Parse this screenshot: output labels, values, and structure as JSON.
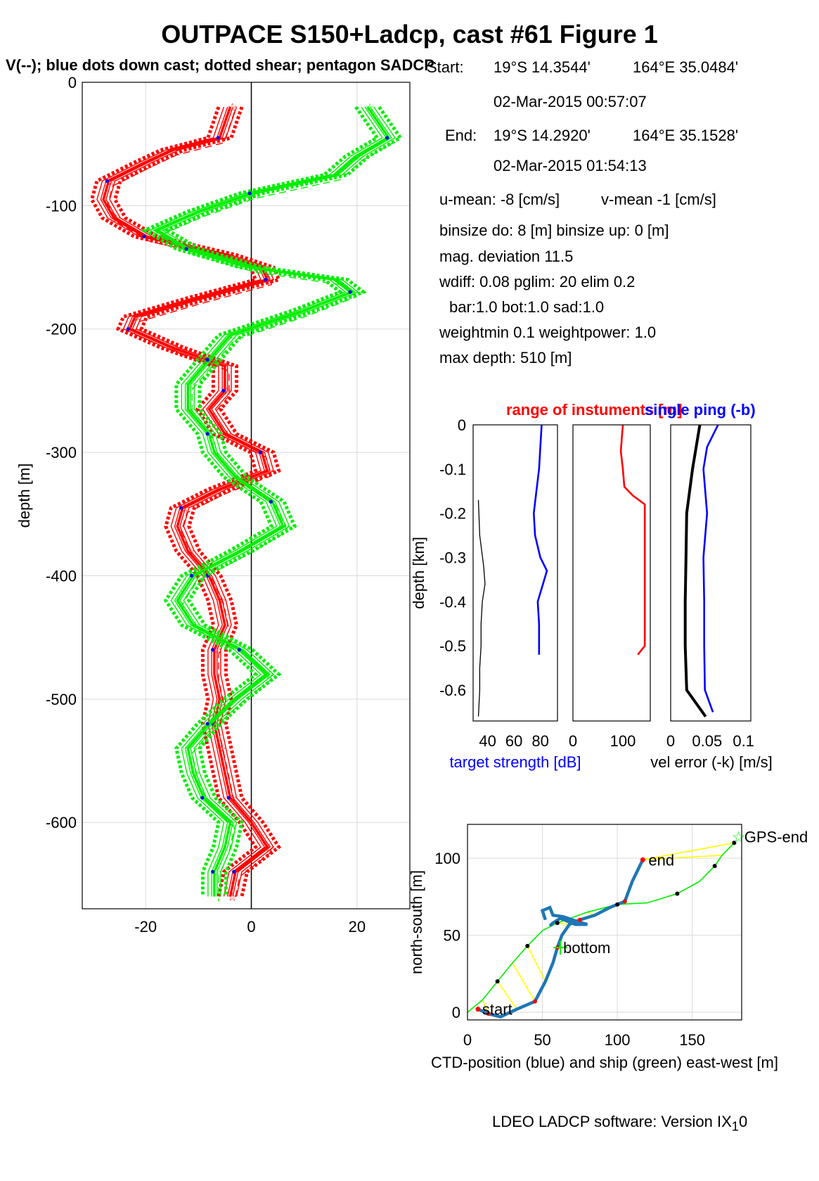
{
  "title": "OUTPACE S150+Ladcp, cast #61  Figure 1",
  "subtitle": "V(--); blue dots down cast; dotted shear; pentagon SADCP",
  "info": {
    "start_label": "Start:",
    "start_lat": "19°S 14.3544'",
    "start_lon": "164°E 35.0484'",
    "start_time": "02-Mar-2015 00:57:07",
    "end_label": "End:",
    "end_lat": "19°S 14.2920'",
    "end_lon": "164°E 35.1528'",
    "end_time": "02-Mar-2015 01:54:13",
    "u_mean": "u-mean:  -8 [cm/s]",
    "v_mean": "v-mean  -1 [cm/s]",
    "binsize": "binsize do: 8 [m]  binsize up:  0 [m]",
    "mag_dev": "mag. deviation 11.5",
    "wdiff": "wdiff: 0.08  pglim: 20  elim 0.2",
    "bar": "bar:1.0 bot:1.0 sad:1.0",
    "weight": "weightmin 0.1  weightpower: 1.0",
    "max_depth": "max depth: 510 [m]"
  },
  "footer": "LDEO LADCP software: Version IX",
  "footer_sub": "1",
  "footer_tail": "0",
  "colors": {
    "u": "#ff0000",
    "v": "#00ee00",
    "blue": "#0000ff",
    "track": "#1f77b4",
    "yellow": "#ffff00"
  },
  "chart_data": [
    {
      "type": "line",
      "id": "velocity-profile",
      "ylabel": "depth [m]",
      "xlim": [
        -32,
        30
      ],
      "ylim": [
        -670,
        0
      ],
      "xticks": [
        -20,
        0,
        20
      ],
      "yticks": [
        0,
        -100,
        -200,
        -300,
        -400,
        -500,
        -600
      ],
      "ytick_labels": [
        "0",
        "-100",
        "-200",
        "-300",
        "-400",
        "-500",
        "-600"
      ],
      "grid": true,
      "series": [
        {
          "color": "red",
          "depth": [
            -20,
            -45,
            -55,
            -65,
            -80,
            -95,
            -110,
            -125,
            -140,
            -150,
            -160,
            -175,
            -190,
            -200,
            -215,
            -230,
            -250,
            -265,
            -285,
            -300,
            -315,
            -330,
            -345,
            -360,
            -380,
            -400,
            -420,
            -440,
            -460,
            -480,
            -500,
            -520,
            -540,
            -560,
            -580,
            -600,
            -620,
            -640,
            -660
          ],
          "values": [
            -4,
            -6,
            -15,
            -20,
            -27,
            -28,
            -26,
            -20,
            -5,
            2,
            3,
            -10,
            -22,
            -23,
            -15,
            -5,
            -5,
            -8,
            -5,
            2,
            3,
            -6,
            -13,
            -14,
            -12,
            -8,
            -6,
            -5,
            -7,
            -7,
            -6,
            -7,
            -6,
            -5,
            -4,
            0,
            3,
            -3,
            -4
          ]
        },
        {
          "color": "green",
          "depth": [
            -20,
            -45,
            -60,
            -75,
            -90,
            -105,
            -120,
            -135,
            -150,
            -160,
            -170,
            -185,
            -205,
            -225,
            -245,
            -265,
            -285,
            -300,
            -320,
            -340,
            -360,
            -380,
            -400,
            -420,
            -440,
            -460,
            -480,
            -500,
            -520,
            -540,
            -560,
            -580,
            -600,
            -620,
            -640,
            -660
          ],
          "values": [
            22,
            26,
            20,
            16,
            0,
            -10,
            -18,
            -12,
            0,
            16,
            19,
            10,
            -4,
            -8,
            -12,
            -12,
            -8,
            -7,
            -3,
            4,
            6,
            -2,
            -11,
            -14,
            -11,
            -2,
            3,
            -3,
            -8,
            -12,
            -11,
            -9,
            -4,
            -5,
            -7,
            -7
          ]
        }
      ]
    },
    {
      "type": "line",
      "id": "target-strength",
      "ylabel": "depth [km]",
      "xlabel": "target strength [dB]",
      "xlim": [
        29,
        93
      ],
      "ylim": [
        -0.67,
        0
      ],
      "xticks": [
        40,
        60,
        80
      ],
      "yticks": [
        0,
        -0.1,
        -0.2,
        -0.3,
        -0.4,
        -0.5,
        -0.6
      ],
      "ytick_labels": [
        "0",
        "-0.1",
        "-0.2",
        "-0.3",
        "-0.4",
        "-0.5",
        "-0.6"
      ],
      "title": "range of instuments [m]",
      "series": [
        {
          "color": "blue",
          "depth": [
            0,
            -0.05,
            -0.1,
            -0.15,
            -0.2,
            -0.25,
            -0.3,
            -0.33,
            -0.36,
            -0.4,
            -0.45,
            -0.52
          ],
          "values": [
            81,
            80,
            79,
            77,
            75,
            76,
            80,
            85,
            82,
            78,
            79,
            79
          ]
        },
        {
          "color": "black",
          "depth": [
            -0.17,
            -0.25,
            -0.32,
            -0.36,
            -0.4,
            -0.45,
            -0.5,
            -0.55,
            -0.6,
            -0.66
          ],
          "values": [
            33,
            34,
            37,
            38,
            36,
            35,
            35,
            34,
            34,
            33
          ]
        }
      ]
    },
    {
      "type": "line",
      "id": "range",
      "xlim": [
        0,
        155
      ],
      "ylim": [
        -0.67,
        0
      ],
      "xticks": [
        0,
        100
      ],
      "series": [
        {
          "color": "red",
          "depth": [
            0,
            -0.03,
            -0.06,
            -0.1,
            -0.14,
            -0.16,
            -0.18,
            -0.3,
            -0.5,
            -0.52
          ],
          "values": [
            100,
            98,
            96,
            100,
            103,
            120,
            144,
            144,
            144,
            130
          ]
        }
      ]
    },
    {
      "type": "line",
      "id": "vel-error",
      "title": "single ping (-b)",
      "xlabel": "vel error (-k) [m/s]",
      "xlim": [
        0,
        0.11
      ],
      "ylim": [
        -0.67,
        0
      ],
      "xticks": [
        0,
        0.05,
        0.1
      ],
      "xtick_labels": [
        "0",
        "0.05",
        "0.1"
      ],
      "series": [
        {
          "color": "black",
          "depth": [
            0,
            -0.1,
            -0.2,
            -0.3,
            -0.4,
            -0.5,
            -0.6,
            -0.66
          ],
          "values": [
            0.04,
            0.03,
            0.022,
            0.021,
            0.02,
            0.02,
            0.022,
            0.048
          ]
        },
        {
          "color": "blue",
          "depth": [
            0,
            -0.05,
            -0.1,
            -0.2,
            -0.3,
            -0.4,
            -0.5,
            -0.6,
            -0.65
          ],
          "values": [
            0.065,
            0.05,
            0.045,
            0.05,
            0.045,
            0.046,
            0.046,
            0.047,
            0.058
          ]
        }
      ]
    },
    {
      "type": "line",
      "id": "position",
      "xlabel": "CTD-position (blue) and ship (green) east-west [m]",
      "ylabel": "north-south [m]",
      "xlim": [
        0,
        183
      ],
      "ylim": [
        -5,
        122
      ],
      "xticks": [
        0,
        50,
        100,
        150
      ],
      "yticks": [
        0,
        50,
        100
      ],
      "annotations": [
        "start",
        "bottom",
        "end",
        "GPS-end"
      ],
      "ctd_track": {
        "x": [
          7,
          14,
          22,
          33,
          45,
          52,
          57,
          60,
          63,
          68,
          75,
          85,
          95,
          105,
          110,
          117
        ],
        "y": [
          2,
          -1,
          -3,
          2,
          7,
          20,
          32,
          42,
          50,
          57,
          60,
          63,
          68,
          72,
          85,
          99
        ]
      },
      "ctd_loop": {
        "x": [
          52,
          50,
          55,
          57,
          64,
          73,
          80,
          72,
          62,
          57,
          55
        ],
        "y": [
          60,
          66,
          68,
          63,
          62,
          59,
          57,
          57,
          61,
          58,
          56
        ]
      },
      "ship_track": {
        "x": [
          0,
          10,
          20,
          30,
          40,
          50,
          60,
          80,
          100,
          120,
          140,
          155,
          165,
          170,
          178
        ],
        "y": [
          0,
          8,
          20,
          32,
          43,
          53,
          58,
          65,
          70,
          71,
          77,
          85,
          95,
          102,
          110
        ]
      },
      "points": {
        "start": [
          7,
          2
        ],
        "bottom": [
          62,
          42
        ],
        "end": [
          117,
          99
        ],
        "gps_end": [
          181,
          114
        ]
      }
    }
  ]
}
